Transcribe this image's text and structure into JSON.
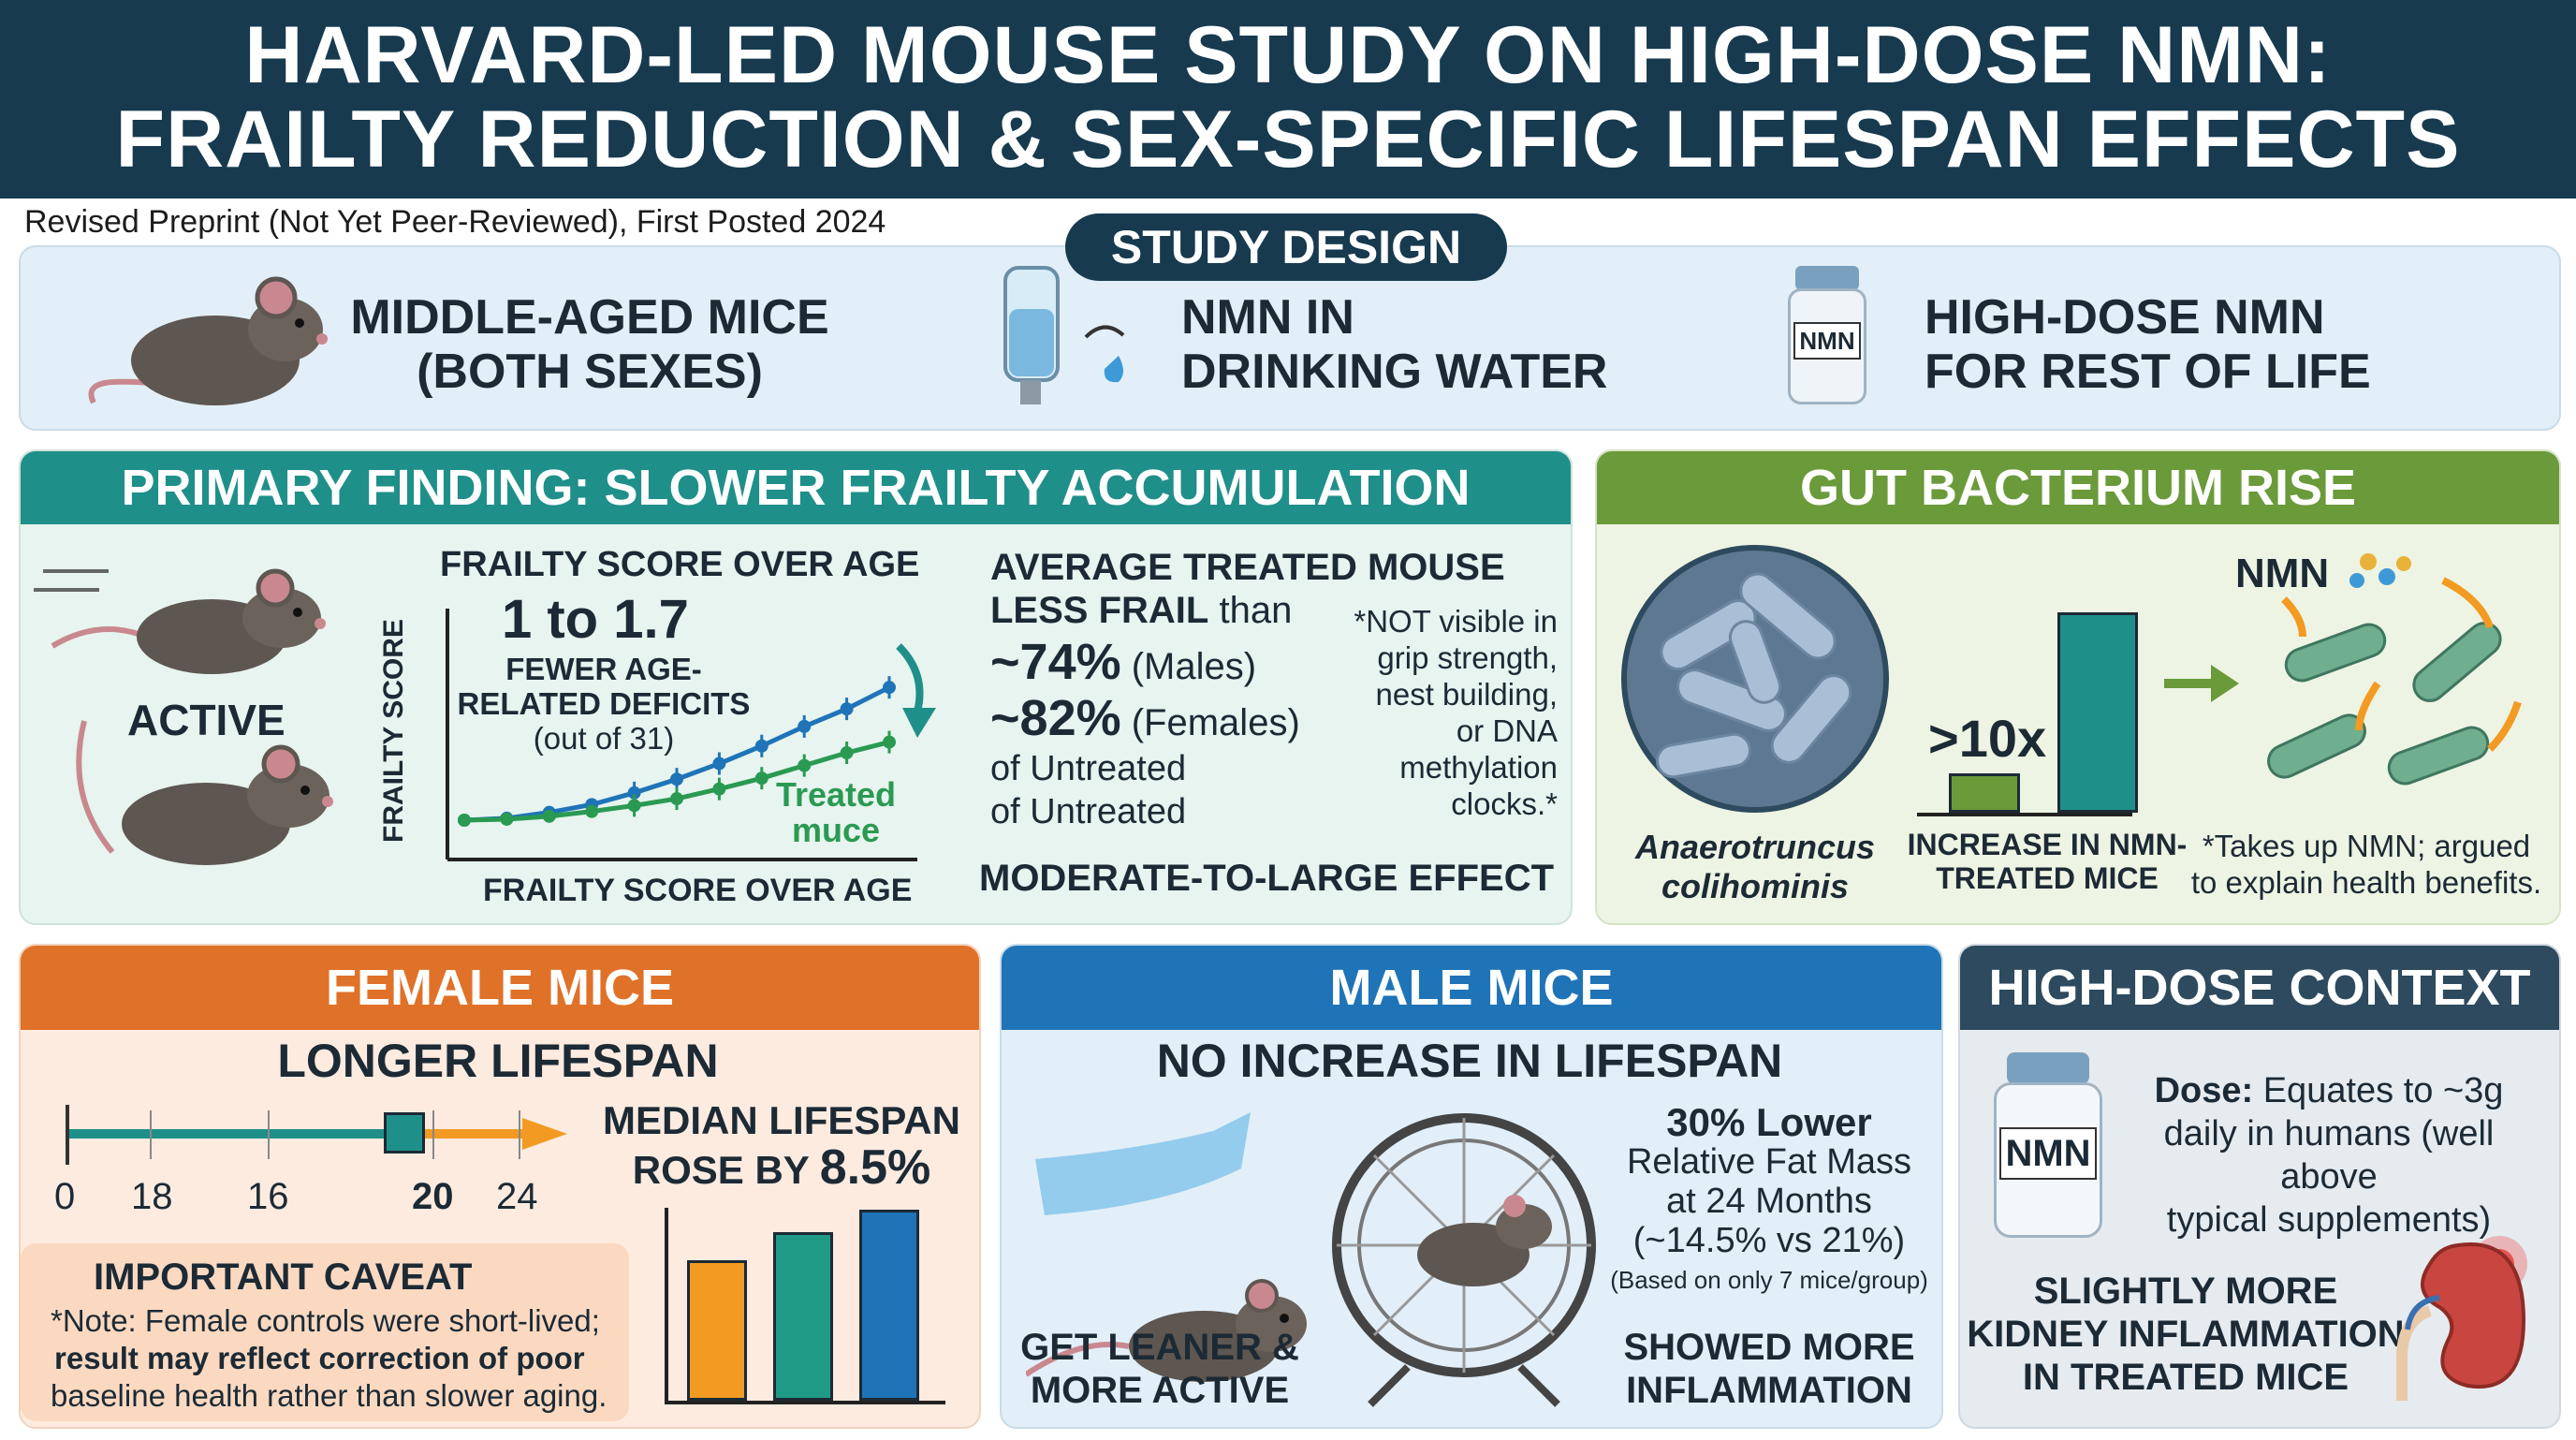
{
  "header": {
    "title_line1": "HARVARD-LED MOUSE STUDY ON HIGH-DOSE NMN:",
    "title_line2": "FRAILTY REDUCTION & SEX-SPECIFIC LIFESPAN EFFECTS"
  },
  "subtitle": "Revised Preprint (Not Yet Peer-Reviewed), First Posted 2024",
  "study_design": {
    "label": "STUDY DESIGN",
    "items": [
      {
        "line1": "MIDDLE-AGED MICE",
        "line2": "(BOTH SEXES)"
      },
      {
        "line1": "NMN IN",
        "line2": "DRINKING WATER"
      },
      {
        "line1": "HIGH-DOSE NMN",
        "line2": "FOR REST OF LIFE"
      }
    ],
    "bottle_label": "NMN"
  },
  "primary": {
    "title": "PRIMARY FINDING: SLOWER FRAILTY ACCUMULATION",
    "active_label": "ACTIVE",
    "chart_title": "FRAILTY SCORE OVER AGE",
    "chart_xlabel": "FRAILTY SCORE OVER AGE",
    "chart_ylabel": "FRAILTY SCORE",
    "big_number": "1 to 1.7",
    "deficits_line1": "FEWER AGE-",
    "deficits_line2": "RELATED DEFICITS",
    "deficits_line3": "(out of 31)",
    "treated_line1": "Treated",
    "treated_line2": "muce",
    "avg_line1": "AVERAGE TREATED MOUSE",
    "avg_line2_bold": "LESS FRAIL",
    "avg_line2_rest": " than",
    "male_pct": "~74%",
    "male_label": " (Males)",
    "female_pct": "~82%",
    "female_label": " (Females)",
    "untreated1": "of Untreated",
    "untreated2": "of Untreated",
    "note_lines": [
      "*NOT visible in",
      "grip strength,",
      "nest building,",
      "or DNA",
      "methylation",
      "clocks.*"
    ],
    "effect": "MODERATE-TO-LARGE EFFECT"
  },
  "gut": {
    "title": "GUT BACTERIUM RISE",
    "species_line1": "Anaerotruncus",
    "species_line2": "colihominis",
    "fold": ">10x",
    "bar_label_line1": "INCREASE IN NMN-",
    "bar_label_line2": "TREATED MICE",
    "nmn_label": "NMN",
    "note_line1": "*Takes up NMN; argued",
    "note_line2": "to explain health benefits."
  },
  "female": {
    "title": "FEMALE MICE",
    "subtitle": "LONGER LIFESPAN",
    "ticks": [
      "0",
      "18",
      "16",
      "20",
      "24"
    ],
    "median_line1": "MEDIAN LIFESPAN",
    "median_line2": "ROSE BY",
    "median_value": "8.5%",
    "caveat_title": "IMPORTANT CAVEAT",
    "caveat_line1": "*Note: Female controls were short-lived;",
    "caveat_line2": "result may reflect correction of poor",
    "caveat_line3": "baseline health rather than slower aging.",
    "bar_colors": [
      "#f29a22",
      "#1f9a86",
      "#1f74b8"
    ]
  },
  "male": {
    "title": "MALE MICE",
    "subtitle": "NO INCREASE IN LIFESPAN",
    "fat_title": "30% Lower",
    "fat_line1": "Relative Fat Mass",
    "fat_line2": "at 24 Months",
    "fat_line3": "(~14.5% vs 21%)",
    "fat_note": "(Based on only 7 mice/group)",
    "leaner_line1": "GET LEANER &",
    "leaner_line2": "MORE ACTIVE",
    "inflam_line1": "SHOWED MORE",
    "inflam_line2": "INFLAMMATION"
  },
  "context": {
    "title": "HIGH-DOSE CONTEXT",
    "bottle_label": "NMN",
    "dose_label": "Dose:",
    "dose_line1": " Equates to ~3g",
    "dose_line2": "daily in humans (well above",
    "dose_line3": "typical supplements)",
    "kidney_line1": "SLIGHTLY MORE",
    "kidney_line2": "KIDNEY INFLAMMATION",
    "kidney_line3": "IN TREATED MICE"
  },
  "colors": {
    "navy": "#173a4f",
    "teal": "#1f8f8a",
    "green": "#6a9a3a",
    "orange": "#e07128",
    "blue": "#1f74b8",
    "slate": "#2d4a5e"
  },
  "chart_data": {
    "type": "line",
    "title": "FRAILTY SCORE OVER AGE",
    "xlabel": "FRAILTY SCORE OVER AGE",
    "ylabel": "FRAILTY SCORE",
    "x": [
      1,
      2,
      3,
      4,
      5,
      6,
      7,
      8,
      9,
      10,
      11
    ],
    "series": [
      {
        "values": [
          1.0,
          1.2,
          1.8,
          2.6,
          3.8,
          5.2,
          6.8,
          8.6,
          10.6,
          12.4,
          14.6
        ]
      },
      {
        "name": "Treated muce",
        "values": [
          1.0,
          1.1,
          1.4,
          1.9,
          2.5,
          3.2,
          4.2,
          5.3,
          6.6,
          7.9,
          9.0
        ]
      }
    ],
    "grid": false
  }
}
